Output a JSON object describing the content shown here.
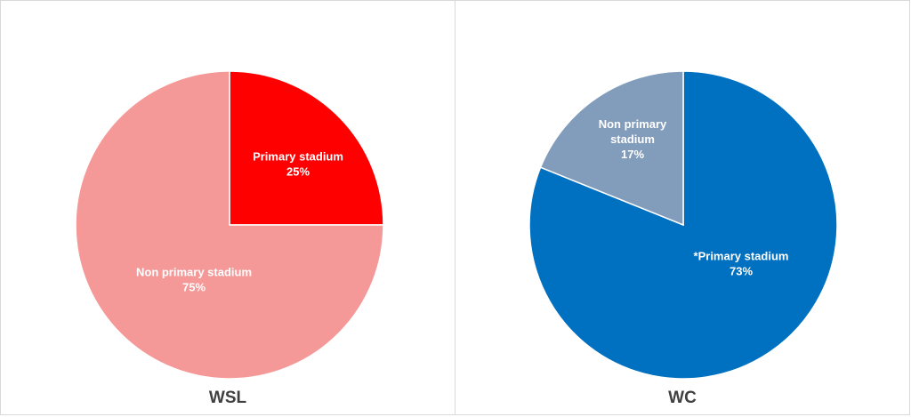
{
  "chart_data": [
    {
      "type": "pie",
      "title": "WSL",
      "slices": [
        {
          "label": "Primary stadium",
          "value": 25,
          "value_label": "25%",
          "color": "#ff0000"
        },
        {
          "label": "Non primary stadium",
          "value": 75,
          "value_label": "75%",
          "color": "#f59898"
        }
      ]
    },
    {
      "type": "pie",
      "title": "WC",
      "slices": [
        {
          "label": "*Primary stadium",
          "value": 73,
          "value_label": "73%",
          "color": "#0070c0"
        },
        {
          "label": "Non primary stadium",
          "value": 17,
          "value_label": "17%",
          "color": "#829cbc"
        }
      ]
    }
  ]
}
